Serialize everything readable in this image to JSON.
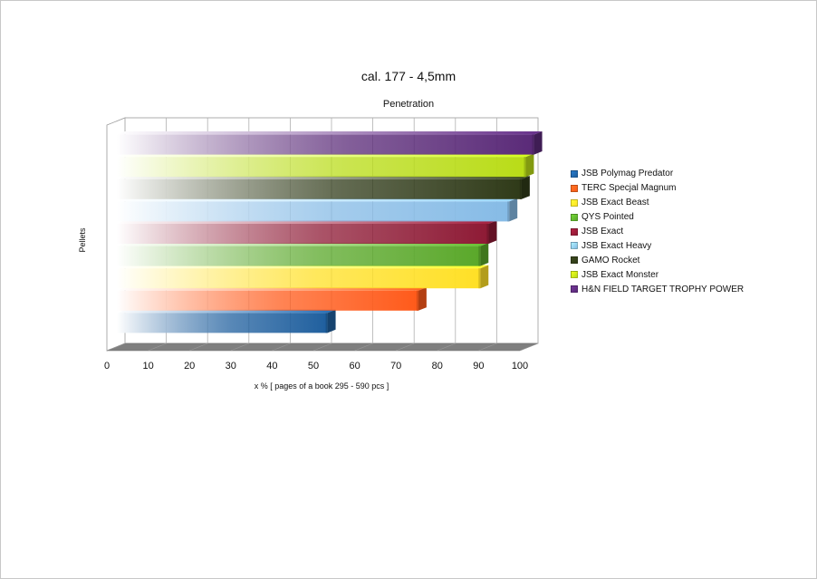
{
  "chart_data": {
    "type": "bar",
    "orientation": "horizontal",
    "title": "cal. 177 - 4,5mm",
    "subtitle": "Penetration",
    "xlabel": "x %  [ pages of a book 295 - 590 pcs ]",
    "ylabel": "Pellets",
    "xlim": [
      0,
      100
    ],
    "x_ticks": [
      "0",
      "10",
      "20",
      "30",
      "40",
      "50",
      "60",
      "70",
      "80",
      "90",
      "100"
    ],
    "grid": true,
    "legend_position": "right",
    "categories": [
      "JSB Polymag Predator",
      "TERC Specjal Magnum",
      "JSB Exact Beast",
      "QYS Pointed",
      "JSB Exact",
      "JSB Exact Heavy",
      "GAMO Rocket",
      "JSB Exact Monster",
      "H&N FIELD TARGET TROPHY POWER"
    ],
    "values": [
      51,
      73,
      88,
      88,
      90,
      95,
      98,
      99,
      101
    ],
    "colors": [
      "#1f5f9e",
      "#ff5a1a",
      "#ffe026",
      "#5aa82a",
      "#8e1a35",
      "#86bbe6",
      "#2f3a18",
      "#b9dc17",
      "#5a2a78"
    ]
  }
}
